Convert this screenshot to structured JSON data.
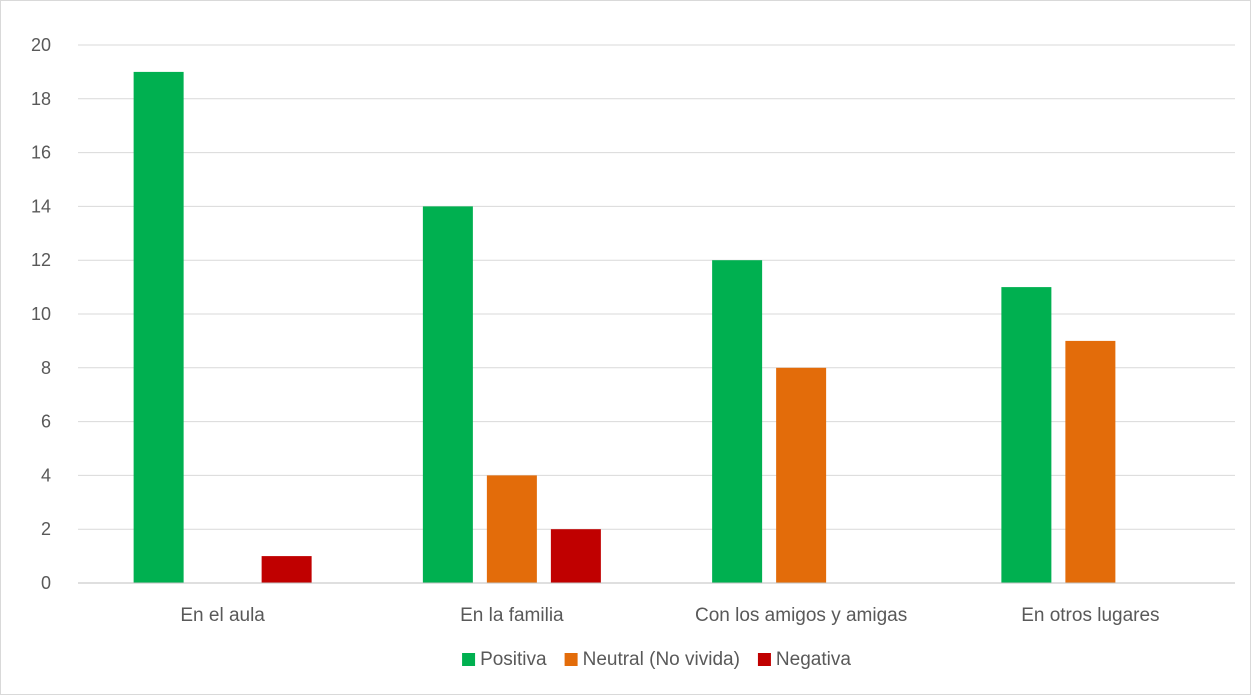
{
  "chart_data": {
    "type": "bar",
    "title": "",
    "xlabel": "",
    "ylabel": "",
    "ylim": [
      0,
      20
    ],
    "yticks": [
      0,
      2,
      4,
      6,
      8,
      10,
      12,
      14,
      16,
      18,
      20
    ],
    "grid": true,
    "legend_position": "bottom",
    "categories": [
      "En el aula",
      "En la familia",
      "Con los amigos y amigas",
      "En otros lugares"
    ],
    "series": [
      {
        "name": "Positiva",
        "color": "#00b050",
        "values": [
          19,
          14,
          12,
          11
        ]
      },
      {
        "name": "Neutral (No vivida)",
        "color": "#e36c0a",
        "values": [
          0,
          4,
          8,
          9
        ]
      },
      {
        "name": "Negativa",
        "color": "#c00000",
        "values": [
          1,
          2,
          0,
          0
        ]
      }
    ]
  }
}
